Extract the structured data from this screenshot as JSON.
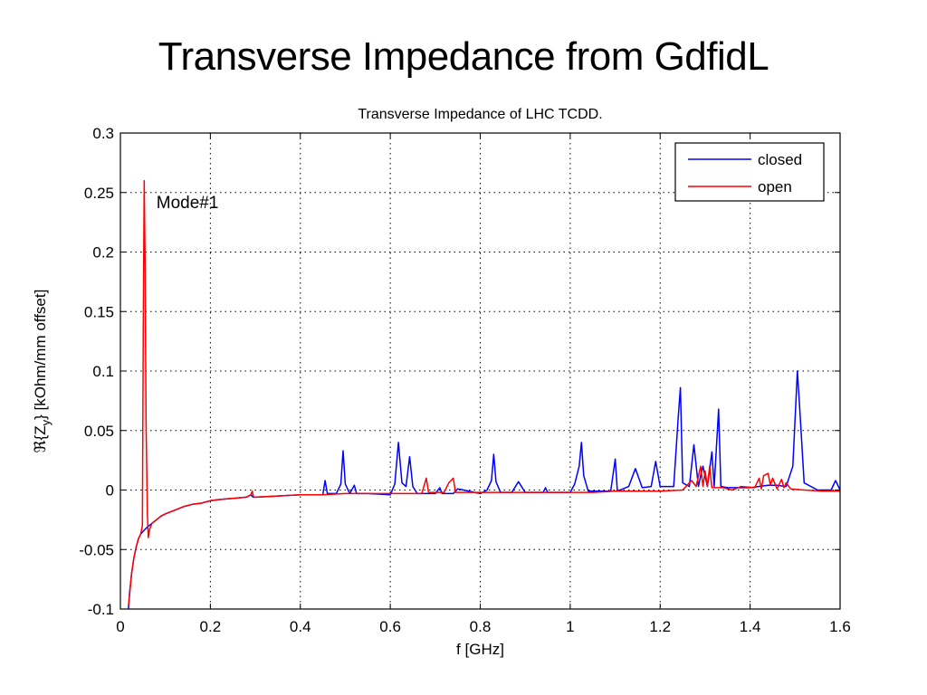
{
  "slide": {
    "title": "Transverse Impedance from GdfidL"
  },
  "chart_data": {
    "type": "line",
    "title": "Transverse Impedance of LHC TCDD.",
    "xlabel": "f [GHz]",
    "ylabel": "ℜ{Z_y} [kOhm/mm offset]",
    "ylabel_prefix": "ℜ{Z",
    "ylabel_sub": "y",
    "ylabel_suffix": "} [kOhm/mm offset]",
    "xlim": [
      0,
      1.6
    ],
    "ylim": [
      -0.1,
      0.3
    ],
    "xticks": [
      0,
      0.2,
      0.4,
      0.6,
      0.8,
      1,
      1.2,
      1.4,
      1.6
    ],
    "xtick_labels": [
      "0",
      "0.2",
      "0.4",
      "0.6",
      "0.8",
      "1",
      "1.2",
      "1.4",
      "1.6"
    ],
    "yticks": [
      -0.1,
      -0.05,
      0,
      0.05,
      0.1,
      0.15,
      0.2,
      0.25,
      0.3
    ],
    "ytick_labels": [
      "-0.1",
      "-0.05",
      "0",
      "0.05",
      "0.1",
      "0.15",
      "0.2",
      "0.25",
      "0.3"
    ],
    "grid": true,
    "legend_position": "top-right",
    "annotation": {
      "text": "Mode#1",
      "x": 0.08,
      "y": 0.237
    },
    "series": [
      {
        "name": "closed",
        "color": "#0000ff",
        "points": [
          [
            0.018,
            -0.1
          ],
          [
            0.02,
            -0.088
          ],
          [
            0.025,
            -0.07
          ],
          [
            0.03,
            -0.057
          ],
          [
            0.035,
            -0.048
          ],
          [
            0.04,
            -0.041
          ],
          [
            0.045,
            -0.037
          ],
          [
            0.05,
            -0.035
          ],
          [
            0.055,
            -0.033
          ],
          [
            0.06,
            -0.031
          ],
          [
            0.07,
            -0.028
          ],
          [
            0.08,
            -0.025
          ],
          [
            0.09,
            -0.022
          ],
          [
            0.1,
            -0.02
          ],
          [
            0.12,
            -0.017
          ],
          [
            0.14,
            -0.014
          ],
          [
            0.16,
            -0.012
          ],
          [
            0.18,
            -0.011
          ],
          [
            0.2,
            -0.009
          ],
          [
            0.22,
            -0.008
          ],
          [
            0.25,
            -0.007
          ],
          [
            0.28,
            -0.006
          ],
          [
            0.29,
            -0.004
          ],
          [
            0.295,
            -0.006
          ],
          [
            0.3,
            -0.006
          ],
          [
            0.35,
            -0.005
          ],
          [
            0.4,
            -0.004
          ],
          [
            0.45,
            -0.004
          ],
          [
            0.455,
            0.008
          ],
          [
            0.46,
            -0.003
          ],
          [
            0.48,
            -0.003
          ],
          [
            0.49,
            0.005
          ],
          [
            0.495,
            0.033
          ],
          [
            0.5,
            0.005
          ],
          [
            0.51,
            -0.003
          ],
          [
            0.52,
            0.004
          ],
          [
            0.525,
            -0.003
          ],
          [
            0.55,
            -0.003
          ],
          [
            0.6,
            -0.004
          ],
          [
            0.61,
            0.005
          ],
          [
            0.618,
            0.04
          ],
          [
            0.626,
            0.006
          ],
          [
            0.635,
            0.003
          ],
          [
            0.643,
            0.028
          ],
          [
            0.65,
            0.003
          ],
          [
            0.66,
            -0.003
          ],
          [
            0.7,
            -0.003
          ],
          [
            0.71,
            0.002
          ],
          [
            0.715,
            -0.003
          ],
          [
            0.74,
            -0.003
          ],
          [
            0.75,
            0.001
          ],
          [
            0.8,
            -0.003
          ],
          [
            0.815,
            0.0
          ],
          [
            0.825,
            0.008
          ],
          [
            0.83,
            0.03
          ],
          [
            0.835,
            0.007
          ],
          [
            0.845,
            -0.002
          ],
          [
            0.87,
            -0.002
          ],
          [
            0.885,
            0.007
          ],
          [
            0.9,
            -0.002
          ],
          [
            0.94,
            -0.002
          ],
          [
            0.945,
            0.002
          ],
          [
            0.95,
            -0.002
          ],
          [
            1.0,
            -0.002
          ],
          [
            1.01,
            0.005
          ],
          [
            1.02,
            0.02
          ],
          [
            1.025,
            0.04
          ],
          [
            1.03,
            0.012
          ],
          [
            1.04,
            -0.001
          ],
          [
            1.09,
            -0.001
          ],
          [
            1.1,
            0.026
          ],
          [
            1.105,
            -0.001
          ],
          [
            1.13,
            0.003
          ],
          [
            1.145,
            0.018
          ],
          [
            1.16,
            0.002
          ],
          [
            1.18,
            0.003
          ],
          [
            1.19,
            0.024
          ],
          [
            1.2,
            0.003
          ],
          [
            1.23,
            0.003
          ],
          [
            1.24,
            0.06
          ],
          [
            1.245,
            0.086
          ],
          [
            1.25,
            0.006
          ],
          [
            1.265,
            0.003
          ],
          [
            1.275,
            0.038
          ],
          [
            1.285,
            0.003
          ],
          [
            1.29,
            0.012
          ],
          [
            1.295,
            0.02
          ],
          [
            1.305,
            0.003
          ],
          [
            1.315,
            0.032
          ],
          [
            1.32,
            0.003
          ],
          [
            1.33,
            0.068
          ],
          [
            1.335,
            0.003
          ],
          [
            1.35,
            0.002
          ],
          [
            1.4,
            0.002
          ],
          [
            1.44,
            0.004
          ],
          [
            1.46,
            0.004
          ],
          [
            1.48,
            0.003
          ],
          [
            1.495,
            0.02
          ],
          [
            1.505,
            0.1
          ],
          [
            1.51,
            0.07
          ],
          [
            1.52,
            0.006
          ],
          [
            1.55,
            0.0
          ],
          [
            1.58,
            0.0
          ],
          [
            1.59,
            0.008
          ],
          [
            1.6,
            0.0
          ]
        ]
      },
      {
        "name": "open",
        "color": "#ff0000",
        "points": [
          [
            0.018,
            -0.097
          ],
          [
            0.02,
            -0.09
          ],
          [
            0.025,
            -0.07
          ],
          [
            0.03,
            -0.057
          ],
          [
            0.035,
            -0.048
          ],
          [
            0.04,
            -0.041
          ],
          [
            0.045,
            -0.037
          ],
          [
            0.049,
            -0.03
          ],
          [
            0.051,
            0.14
          ],
          [
            0.053,
            0.26
          ],
          [
            0.055,
            0.19
          ],
          [
            0.057,
            0.06
          ],
          [
            0.06,
            -0.02
          ],
          [
            0.062,
            -0.04
          ],
          [
            0.065,
            -0.033
          ],
          [
            0.07,
            -0.028
          ],
          [
            0.08,
            -0.025
          ],
          [
            0.09,
            -0.022
          ],
          [
            0.1,
            -0.02
          ],
          [
            0.12,
            -0.017
          ],
          [
            0.14,
            -0.014
          ],
          [
            0.16,
            -0.012
          ],
          [
            0.18,
            -0.011
          ],
          [
            0.2,
            -0.009
          ],
          [
            0.22,
            -0.008
          ],
          [
            0.25,
            -0.007
          ],
          [
            0.28,
            -0.006
          ],
          [
            0.29,
            -0.004
          ],
          [
            0.293,
            -0.001
          ],
          [
            0.296,
            -0.006
          ],
          [
            0.3,
            -0.006
          ],
          [
            0.35,
            -0.005
          ],
          [
            0.4,
            -0.004
          ],
          [
            0.45,
            -0.004
          ],
          [
            0.5,
            -0.003
          ],
          [
            0.55,
            -0.003
          ],
          [
            0.6,
            -0.003
          ],
          [
            0.65,
            -0.003
          ],
          [
            0.67,
            -0.003
          ],
          [
            0.68,
            0.01
          ],
          [
            0.685,
            -0.002
          ],
          [
            0.72,
            -0.002
          ],
          [
            0.73,
            0.006
          ],
          [
            0.74,
            0.01
          ],
          [
            0.745,
            -0.002
          ],
          [
            0.8,
            -0.002
          ],
          [
            0.85,
            -0.002
          ],
          [
            0.9,
            -0.002
          ],
          [
            0.95,
            -0.002
          ],
          [
            1.0,
            -0.002
          ],
          [
            1.05,
            -0.002
          ],
          [
            1.1,
            -0.001
          ],
          [
            1.15,
            -0.001
          ],
          [
            1.2,
            -0.001
          ],
          [
            1.25,
            0.0
          ],
          [
            1.26,
            0.004
          ],
          [
            1.27,
            0.008
          ],
          [
            1.28,
            0.003
          ],
          [
            1.29,
            0.02
          ],
          [
            1.295,
            0.003
          ],
          [
            1.3,
            0.016
          ],
          [
            1.305,
            0.003
          ],
          [
            1.31,
            0.02
          ],
          [
            1.315,
            0.002
          ],
          [
            1.34,
            0.002
          ],
          [
            1.36,
            0.0
          ],
          [
            1.38,
            0.003
          ],
          [
            1.41,
            0.002
          ],
          [
            1.42,
            0.01
          ],
          [
            1.425,
            0.001
          ],
          [
            1.43,
            0.012
          ],
          [
            1.44,
            0.014
          ],
          [
            1.445,
            0.004
          ],
          [
            1.45,
            0.01
          ],
          [
            1.46,
            0.001
          ],
          [
            1.47,
            0.009
          ],
          [
            1.475,
            0.002
          ],
          [
            1.48,
            0.006
          ],
          [
            1.49,
            0.001
          ],
          [
            1.52,
            0.0
          ],
          [
            1.56,
            -0.001
          ],
          [
            1.6,
            -0.001
          ]
        ]
      }
    ]
  }
}
